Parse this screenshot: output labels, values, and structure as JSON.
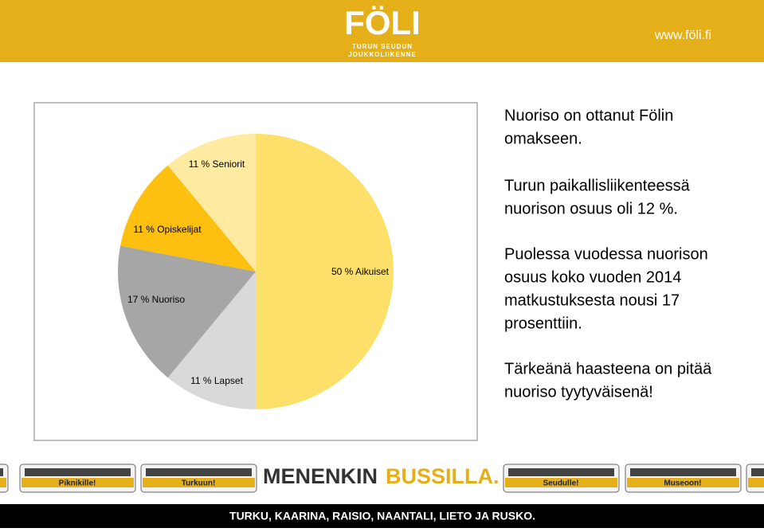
{
  "header": {
    "logo": "FÖLI",
    "logo_subtitle": [
      "TURUN SEUDUN",
      "JOUKKOLIIKENNE"
    ],
    "url": "www.föli.fi"
  },
  "chart_data": {
    "type": "pie",
    "categories": [
      "Aikuiset",
      "Lapset",
      "Nuoriso",
      "Opiskelijat",
      "Seniorit"
    ],
    "values": [
      50,
      11,
      17,
      11,
      11
    ],
    "value_labels": [
      "50 % Aikuiset",
      "11 % Lapset",
      "17 % Nuoriso",
      "11 % Opiskelijat",
      "11 % Seniorit"
    ],
    "colors": [
      "#fde06a",
      "#d9d9d9",
      "#a6a6a6",
      "#fdc010",
      "#feeaa0"
    ]
  },
  "paragraphs": [
    [
      "Nuoriso on ottanut Fölin",
      "omakseen."
    ],
    [
      "Turun paikallisliikenteessä",
      "nuorison osuus oli 12 %."
    ],
    [
      "Puolessa vuodessa nuorison",
      "osuus koko vuoden 2014",
      "matkustuksesta nousi 17",
      "prosenttiin."
    ],
    [
      "Tärkeänä haasteena on pitää",
      "nuoriso tyytyväisenä!"
    ]
  ],
  "footer": {
    "slogan": [
      "MENENKIN",
      "BUSSILLA."
    ],
    "buses": [
      "Piknikille!",
      "Turkuun!",
      "Seudulle!",
      "Museoon!"
    ],
    "towns": "TURKU, KAARINA, RAISIO, NAANTALI, LIETO JA RUSKO."
  }
}
